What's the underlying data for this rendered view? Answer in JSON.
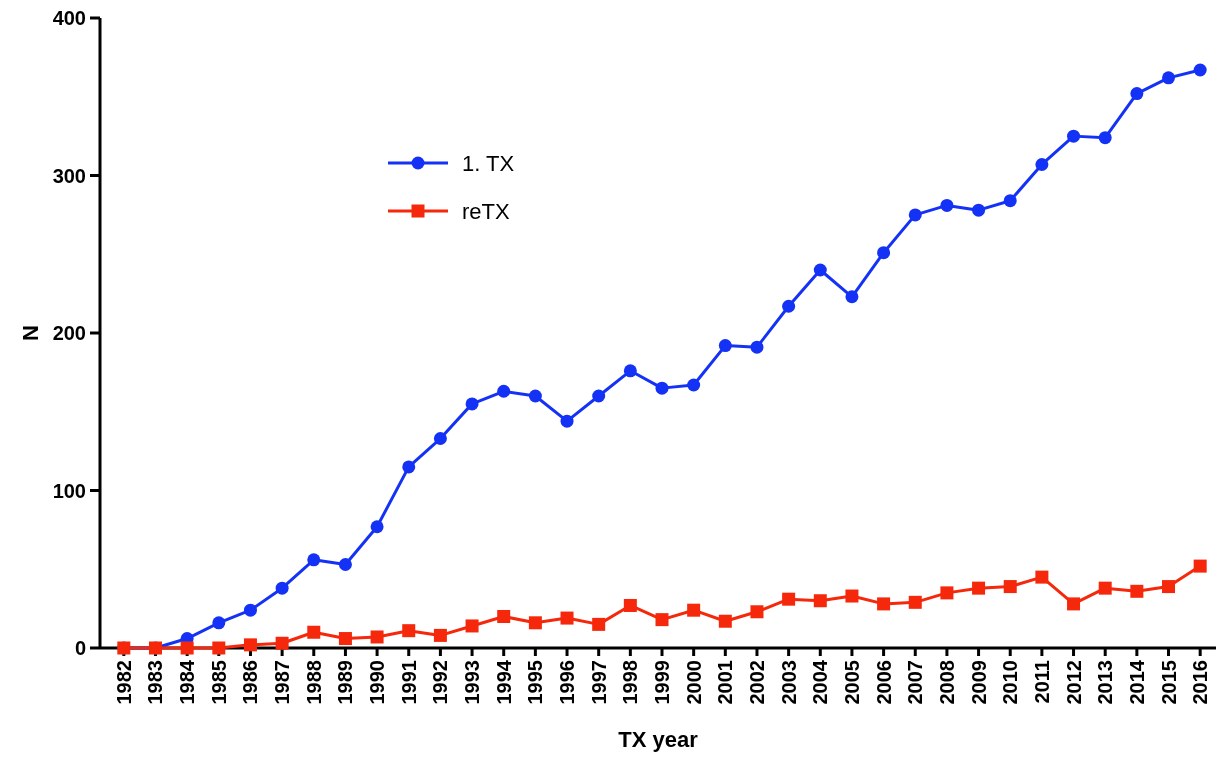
{
  "chart_data": {
    "type": "line",
    "xlabel": "TX year",
    "ylabel": "N",
    "categories": [
      "1982",
      "1983",
      "1984",
      "1985",
      "1986",
      "1987",
      "1988",
      "1989",
      "1990",
      "1991",
      "1992",
      "1993",
      "1994",
      "1995",
      "1996",
      "1997",
      "1998",
      "1999",
      "2000",
      "2001",
      "2002",
      "2003",
      "2004",
      "2005",
      "2006",
      "2007",
      "2008",
      "2009",
      "2010",
      "2011",
      "2012",
      "2013",
      "2014",
      "2015",
      "2016"
    ],
    "series": [
      {
        "name": "1. TX",
        "color": "#1432f5",
        "marker": "circle",
        "values": [
          0,
          0,
          6,
          16,
          24,
          38,
          56,
          53,
          77,
          115,
          133,
          155,
          163,
          160,
          144,
          160,
          176,
          165,
          167,
          192,
          191,
          217,
          240,
          223,
          251,
          275,
          281,
          278,
          284,
          307,
          325,
          324,
          352,
          362,
          367
        ]
      },
      {
        "name": "reTX",
        "color": "#f5280c",
        "marker": "square",
        "values": [
          0,
          0,
          0,
          0,
          2,
          3,
          10,
          6,
          7,
          11,
          8,
          14,
          20,
          16,
          19,
          15,
          27,
          18,
          24,
          17,
          23,
          31,
          30,
          33,
          28,
          29,
          35,
          38,
          39,
          45,
          28,
          38,
          36,
          39,
          52
        ]
      }
    ],
    "ylim": [
      0,
      400
    ],
    "yticks": [
      0,
      100,
      200,
      300,
      400
    ],
    "grid": false,
    "legend": "top left",
    "line_style": "solid"
  }
}
